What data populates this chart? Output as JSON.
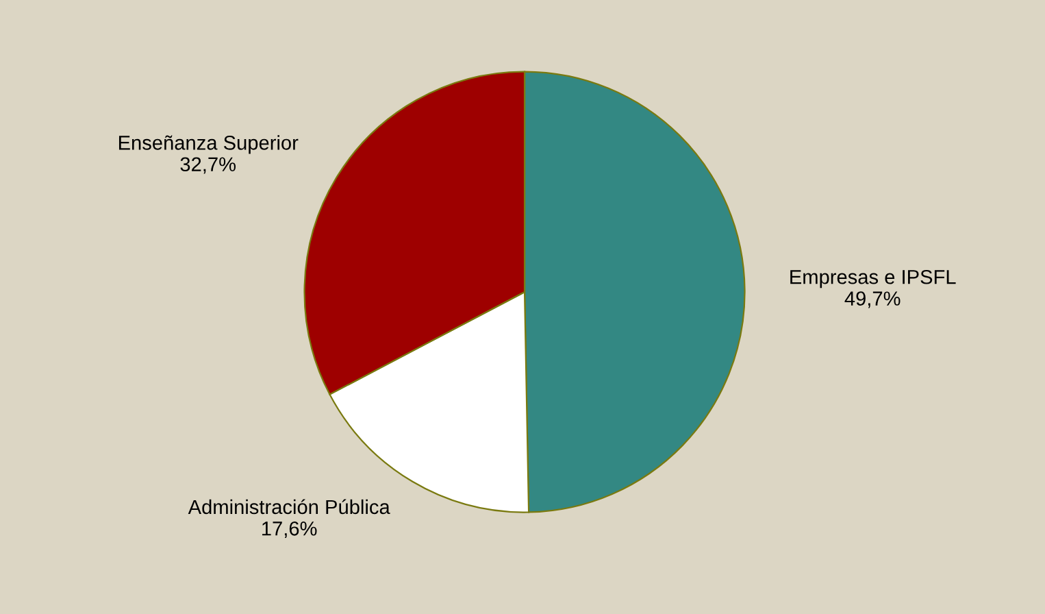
{
  "chart_data": {
    "type": "pie",
    "categories": [
      "Empresas e IPSFL",
      "Administración Pública",
      "Enseñanza Superior"
    ],
    "values": [
      49.7,
      17.6,
      32.7
    ],
    "value_labels": [
      "49,7%",
      "17,6%",
      "32,7%"
    ],
    "colors": [
      "#338883",
      "#ffffff",
      "#9e0000"
    ],
    "legend": false
  }
}
